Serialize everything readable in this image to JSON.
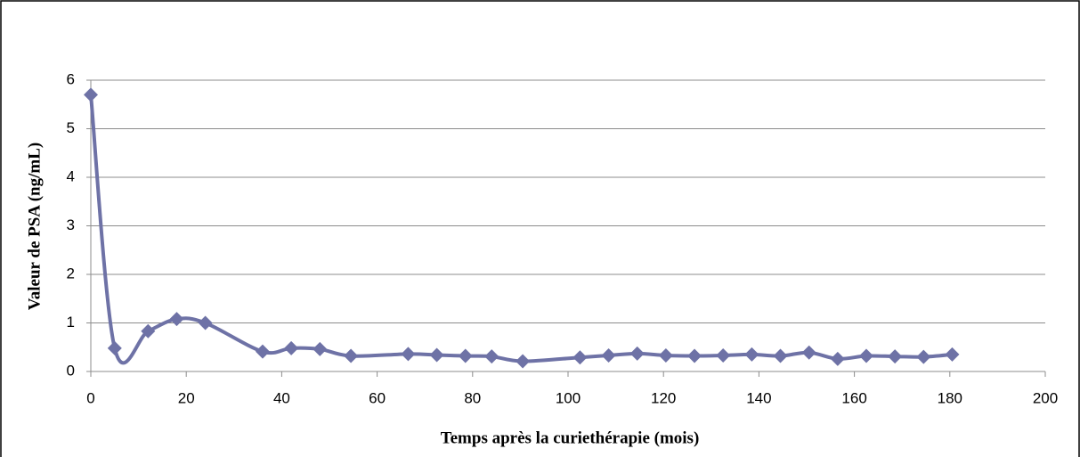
{
  "chart_data": {
    "type": "line",
    "x_label": "Temps après la curiethérapie (mois)",
    "y_label": "Valeur de PSA (ng/mL)",
    "series": [
      {
        "name": "PSA",
        "color": "#6e72a6",
        "x": [
          0,
          5,
          12,
          18,
          24,
          36,
          42,
          48,
          54.5,
          66.5,
          72.5,
          78.5,
          84,
          90.5,
          102.5,
          108.5,
          114.5,
          120.5,
          126.5,
          132.5,
          138.5,
          144.5,
          150.5,
          156.5,
          162.5,
          168.5,
          174.5,
          180.5
        ],
        "values": [
          5.7,
          0.48,
          0.83,
          1.08,
          1.0,
          0.41,
          0.48,
          0.46,
          0.32,
          0.36,
          0.34,
          0.32,
          0.31,
          0.21,
          0.29,
          0.33,
          0.37,
          0.33,
          0.32,
          0.33,
          0.35,
          0.32,
          0.39,
          0.26,
          0.32,
          0.31,
          0.3,
          0.35
        ]
      }
    ],
    "xlim": [
      0,
      200
    ],
    "xticks": [
      0,
      20,
      40,
      60,
      80,
      100,
      120,
      140,
      160,
      180,
      200
    ],
    "ylim": [
      0,
      6
    ],
    "yticks": [
      0,
      1,
      2,
      3,
      4,
      5,
      6
    ],
    "grid": true
  }
}
